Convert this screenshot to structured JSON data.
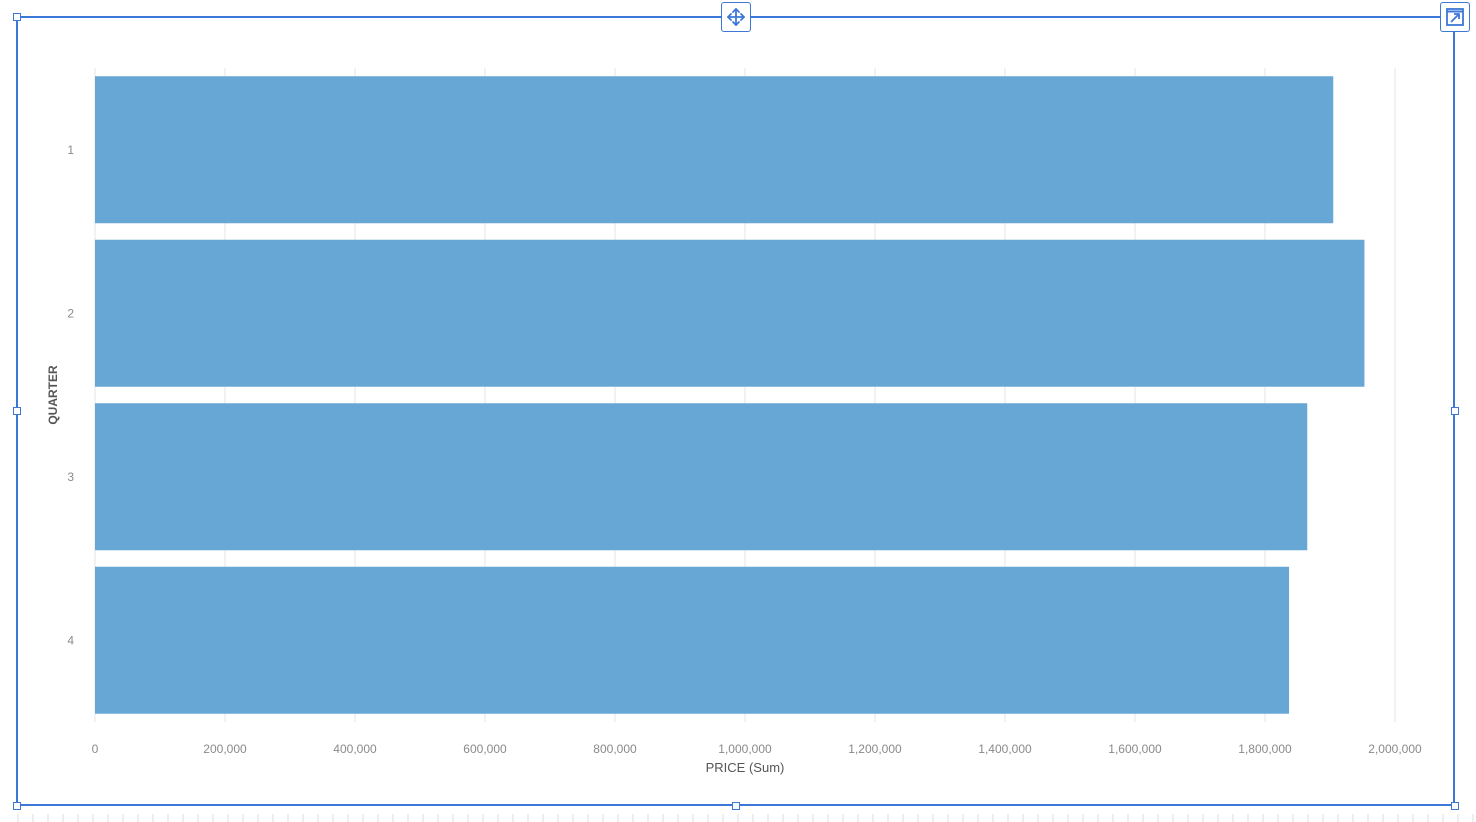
{
  "chart_data": {
    "type": "bar",
    "orientation": "horizontal",
    "categories": [
      "1",
      "2",
      "3",
      "4"
    ],
    "values": [
      1905000,
      1953000,
      1865000,
      1837000
    ],
    "xlabel": "PRICE (Sum)",
    "ylabel": "QUARTER",
    "xlim": [
      0,
      2000000
    ],
    "x_ticks": [
      "0",
      "200,000",
      "400,000",
      "600,000",
      "800,000",
      "1,000,000",
      "1,200,000",
      "1,400,000",
      "1,600,000",
      "1,800,000",
      "2,000,000"
    ],
    "grid": true,
    "legend": "none"
  },
  "colors": {
    "bar": "#67a7d6",
    "frame": "#3b78d8",
    "grid": "#e6e6e6",
    "tick_text": "#8a8a8a",
    "axis_title": "#555555"
  },
  "icons": {
    "move": "move-arrows-icon",
    "expand": "expand-arrow-icon"
  }
}
